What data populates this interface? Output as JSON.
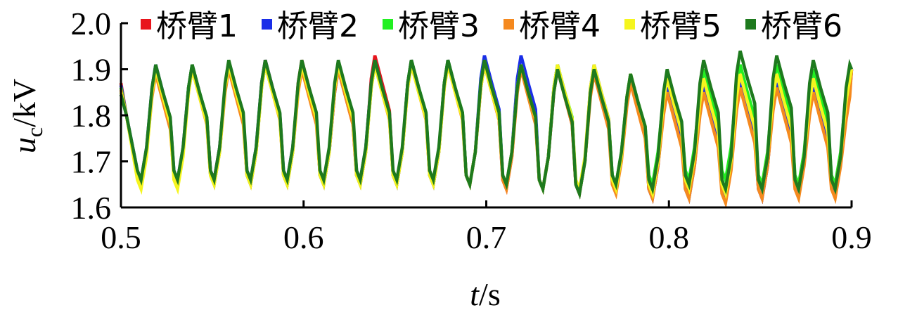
{
  "chart_data": {
    "type": "line",
    "title": "",
    "xlabel": {
      "italic": "t",
      "rest": "/s"
    },
    "ylabel": {
      "italic": "u",
      "sub": "c",
      "rest": "/kV"
    },
    "xlim": [
      0.5,
      0.9
    ],
    "ylim": [
      1.6,
      2.0
    ],
    "x_ticks": [
      0.5,
      0.6,
      0.7,
      0.8,
      0.9
    ],
    "x_tick_labels": [
      "0.5",
      "0.6",
      "0.7",
      "0.8",
      "0.9"
    ],
    "y_ticks": [
      1.6,
      1.7,
      1.8,
      1.9,
      2.0
    ],
    "y_tick_labels": [
      "1.6",
      "1.7",
      "1.8",
      "1.9",
      "2.0"
    ],
    "grid": false,
    "legend_position": "top",
    "period_s": 0.02,
    "series": [
      {
        "name": "桥臂1",
        "color": "#e8141c",
        "peaks": [
          1.9,
          1.91,
          1.91,
          1.92,
          1.92,
          1.9,
          1.93,
          1.92,
          1.92,
          1.91,
          1.91,
          1.9,
          1.9,
          1.88,
          1.86,
          1.87,
          1.88,
          1.87,
          1.86,
          1.85
        ],
        "troughs": [
          1.65,
          1.65,
          1.66,
          1.65,
          1.65,
          1.65,
          1.65,
          1.65,
          1.65,
          1.65,
          1.64,
          1.64,
          1.63,
          1.64,
          1.62,
          1.63,
          1.62,
          1.62,
          1.63,
          1.63
        ]
      },
      {
        "name": "桥臂2",
        "color": "#1a2ee8",
        "peaks": [
          1.91,
          1.91,
          1.91,
          1.92,
          1.91,
          1.9,
          1.92,
          1.92,
          1.92,
          1.93,
          1.93,
          1.91,
          1.91,
          1.89,
          1.86,
          1.86,
          1.87,
          1.87,
          1.86,
          1.85
        ],
        "troughs": [
          1.66,
          1.66,
          1.66,
          1.66,
          1.66,
          1.65,
          1.66,
          1.65,
          1.65,
          1.65,
          1.65,
          1.64,
          1.63,
          1.64,
          1.62,
          1.62,
          1.62,
          1.62,
          1.63,
          1.63
        ]
      },
      {
        "name": "桥臂3",
        "color": "#22f022",
        "peaks": [
          1.9,
          1.91,
          1.91,
          1.91,
          1.91,
          1.91,
          1.91,
          1.92,
          1.92,
          1.92,
          1.91,
          1.91,
          1.9,
          1.89,
          1.89,
          1.9,
          1.91,
          1.91,
          1.9,
          1.9
        ],
        "troughs": [
          1.65,
          1.65,
          1.65,
          1.65,
          1.65,
          1.65,
          1.65,
          1.65,
          1.65,
          1.65,
          1.65,
          1.64,
          1.63,
          1.65,
          1.65,
          1.66,
          1.66,
          1.65,
          1.65,
          1.65
        ]
      },
      {
        "name": "桥臂4",
        "color": "#f5891e",
        "peaks": [
          1.89,
          1.9,
          1.9,
          1.91,
          1.9,
          1.9,
          1.91,
          1.91,
          1.91,
          1.91,
          1.9,
          1.9,
          1.89,
          1.87,
          1.85,
          1.85,
          1.86,
          1.86,
          1.85,
          1.84
        ],
        "troughs": [
          1.65,
          1.65,
          1.65,
          1.65,
          1.65,
          1.65,
          1.65,
          1.65,
          1.65,
          1.65,
          1.64,
          1.64,
          1.63,
          1.63,
          1.62,
          1.62,
          1.61,
          1.62,
          1.62,
          1.62
        ]
      },
      {
        "name": "桥臂5",
        "color": "#f5f51e",
        "peaks": [
          1.9,
          1.9,
          1.91,
          1.91,
          1.91,
          1.91,
          1.91,
          1.91,
          1.91,
          1.91,
          1.91,
          1.91,
          1.91,
          1.89,
          1.88,
          1.88,
          1.89,
          1.89,
          1.88,
          1.88
        ],
        "troughs": [
          1.64,
          1.64,
          1.65,
          1.65,
          1.65,
          1.65,
          1.65,
          1.65,
          1.65,
          1.65,
          1.65,
          1.64,
          1.64,
          1.64,
          1.63,
          1.64,
          1.63,
          1.64,
          1.64,
          1.64
        ]
      },
      {
        "name": "桥臂6",
        "color": "#1e7a1e",
        "peaks": [
          1.91,
          1.91,
          1.92,
          1.92,
          1.92,
          1.92,
          1.92,
          1.92,
          1.92,
          1.92,
          1.91,
          1.9,
          1.9,
          1.89,
          1.9,
          1.92,
          1.94,
          1.93,
          1.92,
          1.91
        ],
        "troughs": [
          1.66,
          1.66,
          1.66,
          1.66,
          1.66,
          1.66,
          1.66,
          1.66,
          1.66,
          1.65,
          1.65,
          1.64,
          1.63,
          1.65,
          1.64,
          1.65,
          1.64,
          1.64,
          1.64,
          1.64
        ]
      }
    ]
  }
}
